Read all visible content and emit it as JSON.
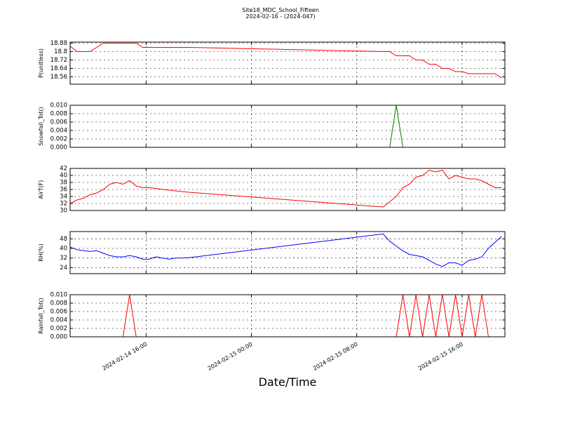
{
  "title": "Site18_MDC_School_Fifteen",
  "subtitle": "2024-02-16 - (2024-047)",
  "xlabel": "Date/Time",
  "chart_data": [
    {
      "type": "line",
      "ylabel": "P(unitless)",
      "color": "#ff0000",
      "x": [
        "2024-02-14 10:15",
        "2024-02-14 10:45",
        "2024-02-14 11:15",
        "2024-02-14 11:45",
        "2024-02-14 12:15",
        "2024-02-14 12:45",
        "2024-02-14 13:15",
        "2024-02-14 13:45",
        "2024-02-14 14:15",
        "2024-02-14 14:45",
        "2024-02-14 15:15",
        "2024-02-14 15:45",
        "2024-02-14 16:15",
        "2024-02-14 16:45",
        "2024-02-14 17:15",
        "2024-02-14 17:45",
        "2024-02-14 18:15",
        "2024-02-14 18:45",
        "2024-02-14 19:15",
        "2024-02-15 10:00",
        "2024-02-15 10:30",
        "2024-02-15 11:00",
        "2024-02-15 11:30",
        "2024-02-15 12:00",
        "2024-02-15 12:30",
        "2024-02-15 13:00",
        "2024-02-15 13:30",
        "2024-02-15 14:00",
        "2024-02-15 14:30",
        "2024-02-15 15:00",
        "2024-02-15 15:30",
        "2024-02-15 16:00",
        "2024-02-15 16:30",
        "2024-02-15 17:00",
        "2024-02-15 17:30",
        "2024-02-15 18:00",
        "2024-02-15 18:30",
        "2024-02-15 19:00"
      ],
      "values": [
        18.85,
        18.8,
        18.8,
        18.8,
        18.84,
        18.88,
        18.88,
        18.88,
        18.88,
        18.88,
        18.88,
        18.84,
        18.84,
        18.84,
        18.84,
        18.84,
        18.84,
        18.84,
        18.84,
        18.8,
        18.8,
        18.76,
        18.76,
        18.76,
        18.72,
        18.72,
        18.68,
        18.68,
        18.64,
        18.64,
        18.61,
        18.61,
        18.59,
        18.59,
        18.59,
        18.59,
        18.59,
        18.55
      ],
      "xlim": [
        "2024-02-14 10:14",
        "2024-02-15 19:15"
      ],
      "xticks": [
        "2024-02-14 16:00",
        "2024-02-15 00:00",
        "2024-02-15 08:00",
        "2024-02-15 16:00"
      ],
      "ylim": [
        18.49,
        18.89
      ],
      "yticks": [
        18.56,
        18.64,
        18.72,
        18.8,
        18.88
      ],
      "grid": true
    },
    {
      "type": "line",
      "ylabel": "Snowfall_Tot()",
      "color": "#008000",
      "x": [
        "2024-02-14 10:15",
        "2024-02-14 10:45",
        "2024-02-14 11:15",
        "2024-02-14 11:45",
        "2024-02-14 12:15",
        "2024-02-14 12:45",
        "2024-02-14 13:15",
        "2024-02-14 13:45",
        "2024-02-14 14:15",
        "2024-02-14 14:45",
        "2024-02-14 15:15",
        "2024-02-14 15:45",
        "2024-02-14 16:15",
        "2024-02-14 16:45",
        "2024-02-14 17:15",
        "2024-02-14 17:45",
        "2024-02-14 18:15",
        "2024-02-14 18:45",
        "2024-02-14 19:15",
        "2024-02-15 10:00",
        "2024-02-15 10:30",
        "2024-02-15 11:00",
        "2024-02-15 11:30",
        "2024-02-15 12:00",
        "2024-02-15 12:30",
        "2024-02-15 13:00",
        "2024-02-15 13:30",
        "2024-02-15 14:00",
        "2024-02-15 14:30",
        "2024-02-15 15:00",
        "2024-02-15 15:30",
        "2024-02-15 16:00",
        "2024-02-15 16:30",
        "2024-02-15 17:00",
        "2024-02-15 17:30",
        "2024-02-15 18:00",
        "2024-02-15 18:30",
        "2024-02-15 19:00"
      ],
      "values": [
        0,
        0,
        0,
        0,
        0,
        0,
        0,
        0,
        0,
        0,
        0,
        0,
        0,
        0,
        0,
        0,
        0,
        0,
        0,
        0,
        0,
        0.01,
        0,
        0,
        0,
        0,
        0,
        0,
        0,
        0,
        0,
        0,
        0,
        0,
        0,
        0,
        0,
        0
      ],
      "xlim": [
        "2024-02-14 10:14",
        "2024-02-15 19:15"
      ],
      "xticks": [
        "2024-02-14 16:00",
        "2024-02-15 00:00",
        "2024-02-15 08:00",
        "2024-02-15 16:00"
      ],
      "ylim": [
        0,
        0.01
      ],
      "yticks": [
        {
          "value": 0,
          "label": "0.000"
        },
        {
          "value": 0.002,
          "label": "0.002"
        },
        {
          "value": 0.004,
          "label": "0.004"
        },
        {
          "value": 0.006,
          "label": "0.006"
        },
        {
          "value": 0.008,
          "label": "0.008"
        },
        {
          "value": 0.01,
          "label": "0.010"
        }
      ],
      "grid": true
    },
    {
      "type": "line",
      "ylabel": "AirT(F)",
      "color": "#ff0000",
      "x": [
        "2024-02-14 10:15",
        "2024-02-14 10:45",
        "2024-02-14 11:15",
        "2024-02-14 11:45",
        "2024-02-14 12:15",
        "2024-02-14 12:45",
        "2024-02-14 13:15",
        "2024-02-14 13:45",
        "2024-02-14 14:15",
        "2024-02-14 14:45",
        "2024-02-14 15:15",
        "2024-02-14 15:45",
        "2024-02-14 16:15",
        "2024-02-14 16:45",
        "2024-02-14 17:15",
        "2024-02-14 17:45",
        "2024-02-14 18:15",
        "2024-02-14 18:45",
        "2024-02-14 19:15",
        "2024-02-15 10:00",
        "2024-02-15 10:30",
        "2024-02-15 11:00",
        "2024-02-15 11:30",
        "2024-02-15 12:00",
        "2024-02-15 12:30",
        "2024-02-15 13:00",
        "2024-02-15 13:30",
        "2024-02-15 14:00",
        "2024-02-15 14:30",
        "2024-02-15 15:00",
        "2024-02-15 15:30",
        "2024-02-15 16:00",
        "2024-02-15 16:30",
        "2024-02-15 17:00",
        "2024-02-15 17:30",
        "2024-02-15 18:00",
        "2024-02-15 18:30",
        "2024-02-15 19:00"
      ],
      "values": [
        32,
        33,
        33.5,
        34.5,
        35,
        36,
        37.5,
        38,
        37.5,
        38.5,
        37,
        36.5,
        36.5,
        36.3,
        36,
        35.8,
        35.6,
        35.4,
        35.2,
        31,
        32.5,
        34,
        36.5,
        37.5,
        39.5,
        40,
        41.5,
        41,
        41.5,
        39,
        40,
        39.5,
        39,
        39,
        38.5,
        37.5,
        36.5,
        36.5
      ],
      "xlim": [
        "2024-02-14 10:14",
        "2024-02-15 19:15"
      ],
      "xticks": [
        "2024-02-14 16:00",
        "2024-02-15 00:00",
        "2024-02-15 08:00",
        "2024-02-15 16:00"
      ],
      "ylim": [
        30,
        42
      ],
      "yticks": [
        30,
        32,
        34,
        36,
        38,
        40,
        42
      ],
      "grid": true
    },
    {
      "type": "line",
      "ylabel": "RH(%)",
      "color": "#0000ff",
      "x": [
        "2024-02-14 10:15",
        "2024-02-14 10:45",
        "2024-02-14 11:15",
        "2024-02-14 11:45",
        "2024-02-14 12:15",
        "2024-02-14 12:45",
        "2024-02-14 13:15",
        "2024-02-14 13:45",
        "2024-02-14 14:15",
        "2024-02-14 14:45",
        "2024-02-14 15:15",
        "2024-02-14 15:45",
        "2024-02-14 16:15",
        "2024-02-14 16:45",
        "2024-02-14 17:15",
        "2024-02-14 17:45",
        "2024-02-14 18:15",
        "2024-02-14 18:45",
        "2024-02-14 19:15",
        "2024-02-15 10:00",
        "2024-02-15 10:30",
        "2024-02-15 11:00",
        "2024-02-15 11:30",
        "2024-02-15 12:00",
        "2024-02-15 12:30",
        "2024-02-15 13:00",
        "2024-02-15 13:30",
        "2024-02-15 14:00",
        "2024-02-15 14:30",
        "2024-02-15 15:00",
        "2024-02-15 15:30",
        "2024-02-15 16:00",
        "2024-02-15 16:30",
        "2024-02-15 17:00",
        "2024-02-15 17:30",
        "2024-02-15 18:00",
        "2024-02-15 18:30",
        "2024-02-15 19:00"
      ],
      "values": [
        41,
        39,
        38,
        37.5,
        38,
        36,
        34,
        33,
        33,
        34,
        33,
        31,
        31,
        33,
        32,
        31,
        32,
        32,
        32.3,
        52,
        46,
        42,
        38,
        35,
        34,
        33,
        30,
        27,
        25,
        28,
        28,
        26,
        30,
        31,
        33,
        40,
        45,
        50
      ],
      "xlim": [
        "2024-02-14 10:14",
        "2024-02-15 19:15"
      ],
      "xticks": [
        "2024-02-14 16:00",
        "2024-02-15 00:00",
        "2024-02-15 08:00",
        "2024-02-15 16:00"
      ],
      "ylim": [
        19,
        54
      ],
      "yticks": [
        24,
        32,
        40,
        48
      ],
      "grid": true
    },
    {
      "type": "line",
      "ylabel": "Rainfall_Tot()",
      "color": "#ff0000",
      "x": [
        "2024-02-14 10:15",
        "2024-02-14 10:45",
        "2024-02-14 11:15",
        "2024-02-14 11:45",
        "2024-02-14 12:15",
        "2024-02-14 12:45",
        "2024-02-14 13:15",
        "2024-02-14 13:45",
        "2024-02-14 14:15",
        "2024-02-14 14:45",
        "2024-02-14 15:15",
        "2024-02-14 15:45",
        "2024-02-14 16:15",
        "2024-02-14 16:45",
        "2024-02-14 17:15",
        "2024-02-14 17:45",
        "2024-02-14 18:15",
        "2024-02-14 18:45",
        "2024-02-14 19:15",
        "2024-02-15 10:00",
        "2024-02-15 10:30",
        "2024-02-15 11:00",
        "2024-02-15 11:30",
        "2024-02-15 12:00",
        "2024-02-15 12:30",
        "2024-02-15 13:00",
        "2024-02-15 13:30",
        "2024-02-15 14:00",
        "2024-02-15 14:30",
        "2024-02-15 15:00",
        "2024-02-15 15:30",
        "2024-02-15 16:00",
        "2024-02-15 16:30",
        "2024-02-15 17:00",
        "2024-02-15 17:30",
        "2024-02-15 18:00",
        "2024-02-15 18:30",
        "2024-02-15 19:00"
      ],
      "values": [
        0,
        0,
        0,
        0,
        0,
        0,
        0,
        0,
        0,
        0.01,
        0,
        0,
        0,
        0,
        0,
        0,
        0,
        0,
        0,
        0,
        0,
        0,
        0.01,
        0,
        0.01,
        0,
        0.01,
        0,
        0.01,
        0,
        0.01,
        0,
        0.01,
        0,
        0.01,
        0,
        0,
        0
      ],
      "xlim": [
        "2024-02-14 10:14",
        "2024-02-15 19:15"
      ],
      "xticks": [
        "2024-02-14 16:00",
        "2024-02-15 00:00",
        "2024-02-15 08:00",
        "2024-02-15 16:00"
      ],
      "ylim": [
        0,
        0.01
      ],
      "yticks": [
        {
          "value": 0,
          "label": "0.000"
        },
        {
          "value": 0.002,
          "label": "0.002"
        },
        {
          "value": 0.004,
          "label": "0.004"
        },
        {
          "value": 0.006,
          "label": "0.006"
        },
        {
          "value": 0.008,
          "label": "0.008"
        },
        {
          "value": 0.01,
          "label": "0.010"
        }
      ],
      "grid": true
    }
  ]
}
